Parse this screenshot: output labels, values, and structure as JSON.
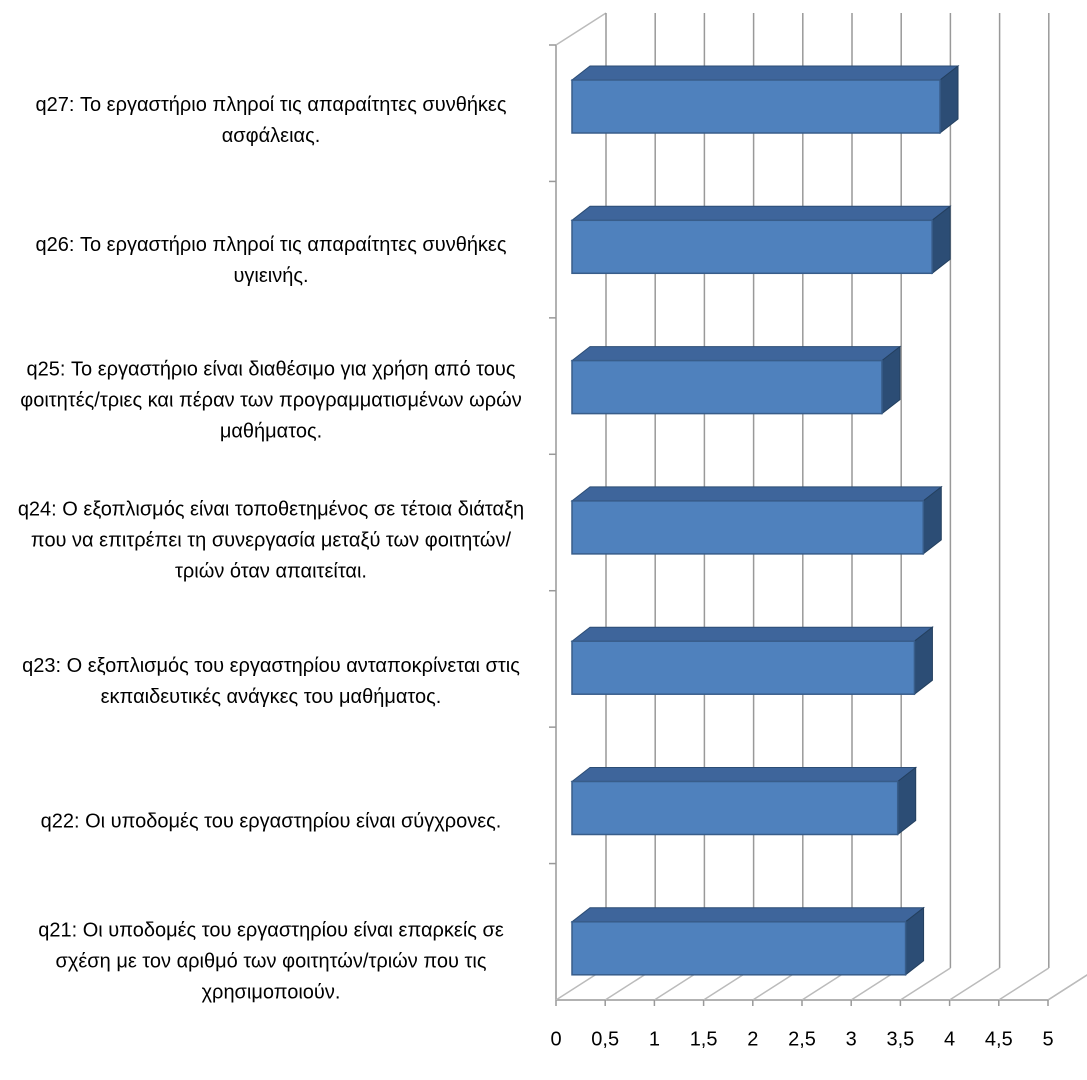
{
  "chart_data": {
    "type": "bar3d",
    "categories": [
      "q21: Οι υποδομές του εργαστηρίου είναι επαρκείς σε σχέση με τον αριθμό των φοιτητών/τριών που τις χρησιμοποιούν.",
      "q22: Οι υποδομές του εργαστηρίου είναι σύγχρονες.",
      "q23: Ο εξοπλισμός του εργαστηρίου ανταποκρίνεται στις εκπαιδευτικές ανάγκες του μαθήματος.",
      "q24: Ο εξοπλισμός είναι τοποθετημένος σε τέτοια διάταξη που να επιτρέπει τη συνεργασία μεταξύ των φοιτητών/τριών όταν απαιτείται.",
      "q25: Το εργαστήριο είναι διαθέσιμο για χρήση από τους φοιτητές/τριες και πέραν των προγραμματισμένων ωρών μαθήματος.",
      "q26: Το εργαστήριο πληροί τις απαραίτητες συνθήκες υγιεινής.",
      "q27: Το εργαστήριο πληροί τις απαραίτητες συνθήκες ασφάλειας."
    ],
    "values": [
      3.39,
      3.31,
      3.48,
      3.57,
      3.15,
      3.66,
      3.74
    ],
    "color": "#4f81bd",
    "xlim": [
      0,
      5
    ],
    "xticks": [
      0,
      {
        "value": 0.5,
        "label": "0,5"
      },
      1,
      {
        "value": 1.5,
        "label": "1,5"
      },
      2,
      {
        "value": 2.5,
        "label": "2,5"
      },
      3,
      {
        "value": 3.5,
        "label": "3,5"
      },
      4,
      {
        "value": 4.5,
        "label": "4,5"
      },
      5
    ],
    "grid": true
  }
}
